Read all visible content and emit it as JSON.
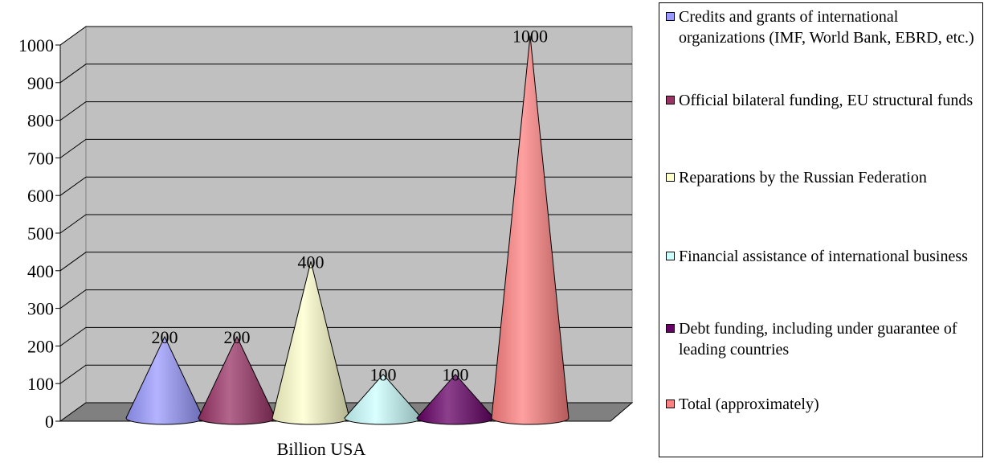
{
  "chart_data": {
    "type": "bar",
    "style": "3d-cone",
    "xlabel": "Billion USA",
    "categories": [
      "Billion USA"
    ],
    "ylim": [
      0,
      1000
    ],
    "yticks": [
      0,
      100,
      200,
      300,
      400,
      500,
      600,
      700,
      800,
      900,
      1000
    ],
    "grid": true,
    "legend_position": "right",
    "series": [
      {
        "name": "Credits and grants of international organizations (IMF, World Bank, EBRD, etc.)",
        "values": [
          200
        ],
        "label": "200",
        "color": "#9999ff"
      },
      {
        "name": "Official bilateral funding, EU structural funds",
        "values": [
          200
        ],
        "label": "200",
        "color": "#993366"
      },
      {
        "name": "Reparations by the Russian Federation",
        "values": [
          400
        ],
        "label": "400",
        "color": "#ffffcc"
      },
      {
        "name": "Financial assistance of international business",
        "values": [
          100
        ],
        "label": "100",
        "color": "#ccffff"
      },
      {
        "name": "Debt funding, including under guarantee of leading countries",
        "values": [
          100
        ],
        "label": "100",
        "color": "#660066"
      },
      {
        "name": "Total (approximately)",
        "values": [
          1000
        ],
        "label": "1000",
        "color": "#ff8080"
      }
    ]
  }
}
